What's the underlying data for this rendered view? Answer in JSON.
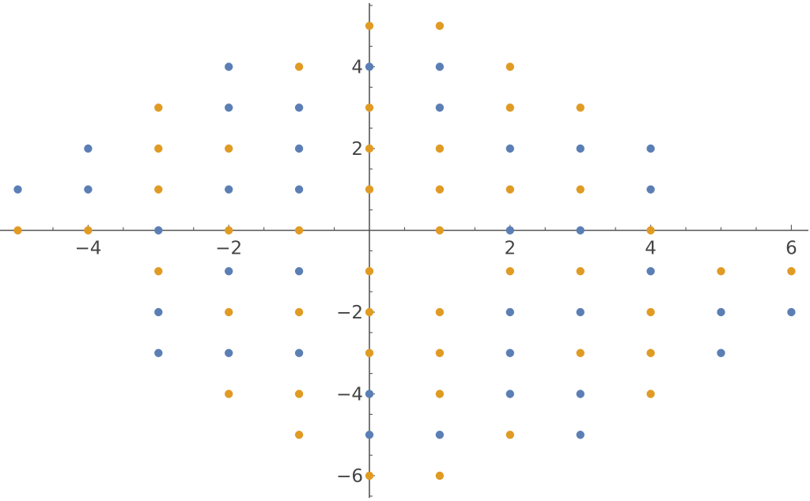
{
  "chart_data": {
    "type": "scatter",
    "title": "",
    "xlabel": "",
    "ylabel": "",
    "xlim": [
      -5,
      6
    ],
    "ylim": [
      -6,
      5
    ],
    "grid": false,
    "x_ticks": [
      {
        "value": -4,
        "label": "−4"
      },
      {
        "value": -2,
        "label": "−2"
      },
      {
        "value": 2,
        "label": "2"
      },
      {
        "value": 4,
        "label": "4"
      },
      {
        "value": 6,
        "label": "6"
      }
    ],
    "y_ticks": [
      {
        "value": 4,
        "label": "4"
      },
      {
        "value": 2,
        "label": "2"
      },
      {
        "value": -2,
        "label": "−2"
      },
      {
        "value": -4,
        "label": "−4"
      },
      {
        "value": -6,
        "label": "−6"
      }
    ],
    "series": [
      {
        "color": "#5b7fb5",
        "points": [
          [
            -5,
            1
          ],
          [
            -4,
            2
          ],
          [
            -4,
            1
          ],
          [
            -3,
            0
          ],
          [
            -3,
            -2
          ],
          [
            -3,
            -3
          ],
          [
            -2,
            4
          ],
          [
            -2,
            3
          ],
          [
            -2,
            1
          ],
          [
            -2,
            -1
          ],
          [
            -2,
            -3
          ],
          [
            -1,
            3
          ],
          [
            -1,
            2
          ],
          [
            -1,
            1
          ],
          [
            -1,
            -1
          ],
          [
            -1,
            -3
          ],
          [
            0,
            4
          ],
          [
            0,
            -4
          ],
          [
            0,
            -5
          ],
          [
            1,
            4
          ],
          [
            1,
            3
          ],
          [
            1,
            -5
          ],
          [
            2,
            2
          ],
          [
            2,
            0
          ],
          [
            2,
            -2
          ],
          [
            2,
            -3
          ],
          [
            2,
            -4
          ],
          [
            3,
            2
          ],
          [
            3,
            0
          ],
          [
            3,
            -2
          ],
          [
            3,
            -4
          ],
          [
            3,
            -5
          ],
          [
            4,
            2
          ],
          [
            4,
            1
          ],
          [
            4,
            -1
          ],
          [
            5,
            -2
          ],
          [
            5,
            -3
          ],
          [
            6,
            -2
          ]
        ]
      },
      {
        "color": "#e09b24",
        "points": [
          [
            -5,
            0
          ],
          [
            -4,
            0
          ],
          [
            -3,
            3
          ],
          [
            -3,
            2
          ],
          [
            -3,
            1
          ],
          [
            -3,
            -1
          ],
          [
            -2,
            2
          ],
          [
            -2,
            0
          ],
          [
            -2,
            -2
          ],
          [
            -2,
            -4
          ],
          [
            -1,
            4
          ],
          [
            -1,
            0
          ],
          [
            -1,
            -2
          ],
          [
            -1,
            -4
          ],
          [
            -1,
            -5
          ],
          [
            0,
            5
          ],
          [
            0,
            3
          ],
          [
            0,
            2
          ],
          [
            0,
            1
          ],
          [
            0,
            -1
          ],
          [
            0,
            -2
          ],
          [
            0,
            -3
          ],
          [
            0,
            -6
          ],
          [
            1,
            5
          ],
          [
            1,
            2
          ],
          [
            1,
            1
          ],
          [
            1,
            0
          ],
          [
            1,
            -2
          ],
          [
            1,
            -3
          ],
          [
            1,
            -4
          ],
          [
            1,
            -6
          ],
          [
            2,
            4
          ],
          [
            2,
            3
          ],
          [
            2,
            1
          ],
          [
            2,
            -1
          ],
          [
            2,
            -5
          ],
          [
            3,
            3
          ],
          [
            3,
            1
          ],
          [
            3,
            -1
          ],
          [
            3,
            -3
          ],
          [
            4,
            0
          ],
          [
            4,
            -2
          ],
          [
            4,
            -3
          ],
          [
            4,
            -4
          ],
          [
            5,
            -1
          ],
          [
            6,
            -1
          ]
        ]
      }
    ]
  }
}
